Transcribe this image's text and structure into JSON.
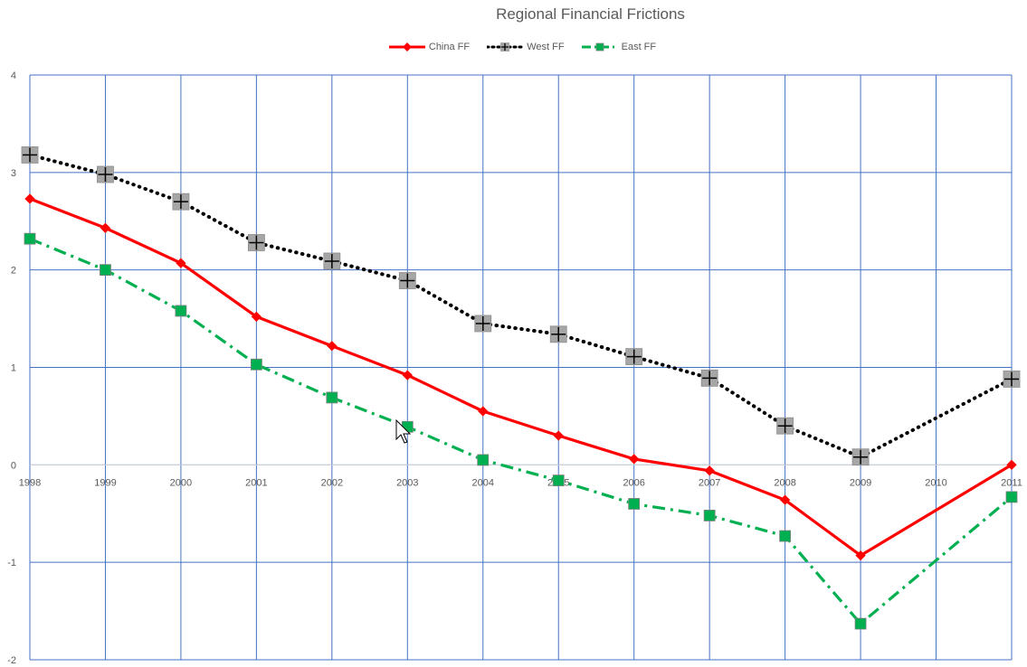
{
  "chart_data": {
    "type": "line",
    "title": "Regional Financial Frictions",
    "xlabel": "",
    "ylabel": "",
    "categories": [
      "1998",
      "1999",
      "2000",
      "2001",
      "2002",
      "2003",
      "2004",
      "2005",
      "2006",
      "2007",
      "2008",
      "2009",
      "2010",
      "2011"
    ],
    "ylim": [
      -2,
      4
    ],
    "yticks": [
      "4",
      "3",
      "2",
      "1",
      "0",
      "-1",
      "-2"
    ],
    "grid": true,
    "legend_position": "top",
    "series": [
      {
        "name": "China FF",
        "color": "#ff0000",
        "style": "solid",
        "marker": "diamond",
        "values": [
          2.73,
          2.43,
          2.07,
          1.52,
          1.22,
          0.92,
          0.55,
          0.3,
          0.06,
          -0.06,
          -0.36,
          -0.93,
          null,
          0.0
        ]
      },
      {
        "name": "West FF",
        "color": "#000000",
        "style": "dotted",
        "marker": "square-cross",
        "values": [
          3.18,
          2.98,
          2.7,
          2.28,
          2.09,
          1.89,
          1.45,
          1.34,
          1.11,
          0.89,
          0.4,
          0.08,
          null,
          0.88
        ]
      },
      {
        "name": "East FF",
        "color": "#00b050",
        "style": "dashdot",
        "marker": "square",
        "values": [
          2.32,
          2.0,
          1.58,
          1.03,
          0.69,
          0.39,
          0.05,
          -0.16,
          -0.4,
          -0.52,
          -0.73,
          -1.63,
          null,
          -0.33
        ]
      }
    ]
  }
}
